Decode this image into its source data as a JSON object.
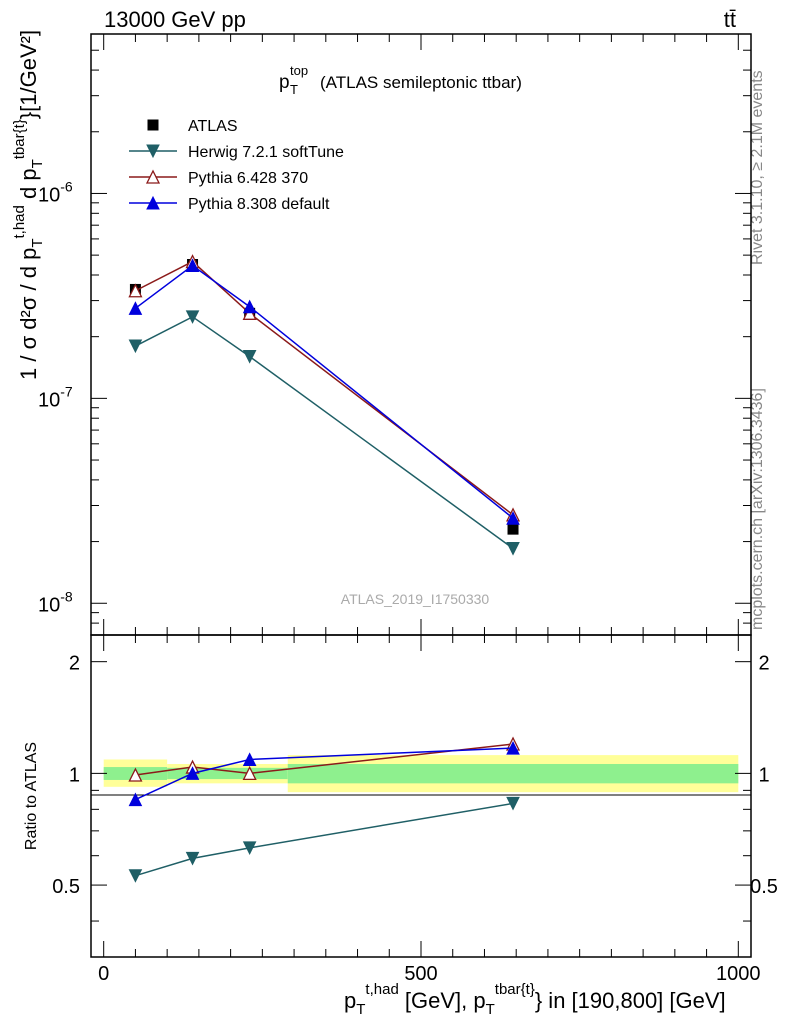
{
  "header": {
    "left": "13000 GeV pp",
    "right": "tt̄"
  },
  "side_labels": {
    "rivet": "Rivet 3.1.10, ≥ 2.1M events",
    "source": "mcplots.cern.ch [arXiv:1306.3436]"
  },
  "watermark": "ATLAS_2019_I1750330",
  "colors": {
    "data": "#000000",
    "herwig": "#1f5f66",
    "pythia6": "#8b1a1a",
    "pythia8": "#0000dd",
    "band_outer": "#ffff99",
    "band_inner": "#8ef08e"
  },
  "chart_data": [
    {
      "type": "line",
      "title": "p_T^top (ATLAS semileptonic ttbar)",
      "ylabel": "1 / σ d²σ / d p_T^{t,had} d p_T^{tbar{t}} [1/GeV²]",
      "yscale": "log",
      "ylim": [
        7e-09,
        6e-06
      ],
      "xlim": [
        -20,
        1020
      ],
      "ytick_labels": [
        "10^-8",
        "10^-7",
        "10^-6"
      ],
      "legend_position": "top-left",
      "x": [
        50,
        140,
        230,
        645
      ],
      "series": [
        {
          "name": "ATLAS",
          "marker": "square",
          "values": [
            3.4e-07,
            4.5e-07,
            2.6e-07,
            2.3e-08
          ]
        },
        {
          "name": "Herwig 7.2.1 softTune",
          "marker": "triangle-down",
          "values": [
            1.8e-07,
            2.5e-07,
            1.6e-07,
            1.85e-08
          ]
        },
        {
          "name": "Pythia 6.428 370",
          "marker": "triangle-up-open",
          "values": [
            3.35e-07,
            4.65e-07,
            2.6e-07,
            2.7e-08
          ]
        },
        {
          "name": "Pythia 8.308 default",
          "marker": "triangle-up",
          "values": [
            2.75e-07,
            4.45e-07,
            2.8e-07,
            2.6e-08
          ]
        }
      ]
    },
    {
      "type": "line",
      "ylabel": "Ratio to ATLAS",
      "xlabel": "p_T^{t,had} [GeV], p_T^{tbar{t}} in [190,800] [GeV]",
      "ylim": [
        0.32,
        2.36
      ],
      "xlim": [
        -20,
        1020
      ],
      "ytick_labels": [
        "0.5",
        "1",
        "2"
      ],
      "xtick_labels": [
        "0",
        "500",
        "1000"
      ],
      "x": [
        50,
        140,
        230,
        645
      ],
      "series": [
        {
          "name": "Herwig 7.2.1 softTune",
          "values": [
            0.53,
            0.59,
            0.63,
            0.83
          ]
        },
        {
          "name": "Pythia 6.428 370",
          "values": [
            0.99,
            1.04,
            1.0,
            1.2
          ]
        },
        {
          "name": "Pythia 8.308 default",
          "values": [
            0.85,
            1.0,
            1.09,
            1.17
          ]
        }
      ],
      "uncertainty_bins": [
        {
          "x0": 0,
          "x1": 100,
          "inner": [
            0.96,
            1.04
          ],
          "outer": [
            0.92,
            1.09
          ]
        },
        {
          "x0": 100,
          "x1": 290,
          "inner": [
            0.965,
            1.035
          ],
          "outer": [
            0.94,
            1.06
          ]
        },
        {
          "x0": 290,
          "x1": 1000,
          "inner": [
            0.94,
            1.06
          ],
          "outer": [
            0.89,
            1.12
          ]
        }
      ]
    }
  ]
}
